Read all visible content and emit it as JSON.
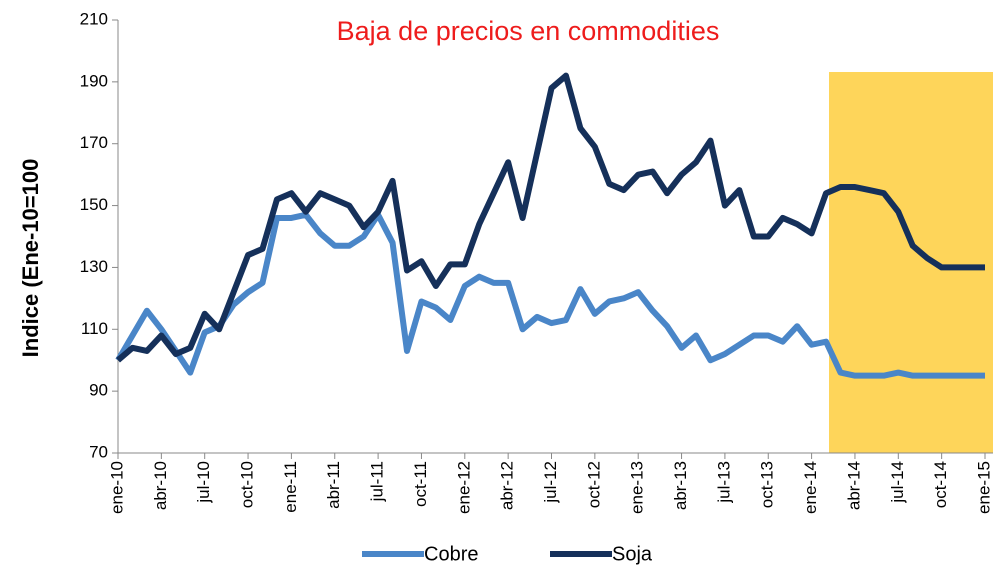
{
  "chart_data": {
    "type": "line",
    "title": "Baja de precios en commodities",
    "y_label": "Indice (Ene-10=100",
    "categories": [
      "ene-10",
      null,
      null,
      "abr-10",
      null,
      null,
      "jul-10",
      null,
      null,
      "oct-10",
      null,
      null,
      "ene-11",
      null,
      null,
      "abr-11",
      null,
      null,
      "jul-11",
      null,
      null,
      "oct-11",
      null,
      null,
      "ene-12",
      null,
      null,
      "abr-12",
      null,
      null,
      "jul-12",
      null,
      null,
      "oct-12",
      null,
      null,
      "ene-13",
      null,
      null,
      "abr-13",
      null,
      null,
      "jul-13",
      null,
      null,
      "oct-13",
      null,
      null,
      "ene-14",
      null,
      null,
      "abr-14",
      null,
      null,
      "jul-14",
      null,
      null,
      "oct-14",
      null,
      null,
      "ene-15"
    ],
    "series": [
      {
        "name": "Cobre",
        "color": "#4a86c8",
        "values": [
          100,
          108,
          116,
          110,
          103,
          96,
          109,
          111,
          118,
          122,
          125,
          146,
          146,
          147,
          141,
          137,
          137,
          140,
          147,
          138,
          103,
          119,
          117,
          113,
          124,
          127,
          125,
          125,
          110,
          114,
          112,
          113,
          123,
          115,
          119,
          120,
          122,
          116,
          111,
          104,
          108,
          100,
          102,
          105,
          108,
          108,
          106,
          111,
          105,
          106,
          96,
          95,
          95,
          95,
          96,
          95,
          95,
          95,
          95,
          95,
          95
        ]
      },
      {
        "name": "Soja",
        "color": "#15305a",
        "values": [
          100,
          104,
          103,
          108,
          102,
          104,
          115,
          110,
          122,
          134,
          136,
          152,
          154,
          148,
          154,
          152,
          150,
          143,
          148,
          158,
          129,
          132,
          124,
          131,
          131,
          144,
          154,
          164,
          146,
          167,
          188,
          192,
          175,
          169,
          157,
          155,
          160,
          161,
          154,
          160,
          164,
          171,
          150,
          155,
          140,
          140,
          146,
          144,
          141,
          154,
          156,
          156,
          155,
          154,
          148,
          137,
          133,
          130,
          130,
          130,
          130
        ]
      }
    ],
    "ylim": [
      70,
      210
    ],
    "yticks": [
      70,
      90,
      110,
      130,
      150,
      170,
      190,
      210
    ]
  }
}
